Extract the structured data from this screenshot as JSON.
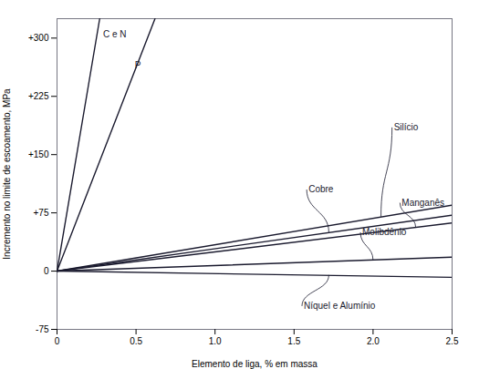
{
  "chart_data": {
    "type": "line",
    "xlabel": "Elemento de liga, % em massa",
    "ylabel": "Incremento no limite de escoamento, MPa",
    "color": "#1a1a2e",
    "xlim": [
      0,
      2.5
    ],
    "ylim": [
      -75,
      325
    ],
    "xticks": [
      0,
      0.5,
      {
        "value": 1.0,
        "label": "1.0"
      },
      1.5,
      {
        "value": 2.0,
        "label": "2.0"
      },
      2.5
    ],
    "yticks": [
      -75,
      0,
      {
        "value": 75,
        "label": "+75"
      },
      {
        "value": 150,
        "label": "+150"
      },
      {
        "value": 225,
        "label": "+225"
      },
      {
        "value": 300,
        "label": "+300"
      }
    ],
    "series": [
      {
        "name": "C e N",
        "x": [
          0,
          0.27
        ],
        "values": [
          0,
          325
        ]
      },
      {
        "name": "P",
        "x": [
          0,
          0.62
        ],
        "values": [
          0,
          325
        ]
      },
      {
        "name": "Silício",
        "x": [
          0,
          2.5
        ],
        "values": [
          0,
          85
        ]
      },
      {
        "name": "Cobre",
        "x": [
          0,
          2.5
        ],
        "values": [
          0,
          72
        ]
      },
      {
        "name": "Manganês",
        "x": [
          0,
          2.5
        ],
        "values": [
          0,
          62
        ]
      },
      {
        "name": "Molibdênio",
        "x": [
          0,
          2.5
        ],
        "values": [
          0,
          18
        ]
      },
      {
        "name": "Níquel e Alumínio",
        "x": [
          0,
          2.5
        ],
        "values": [
          0,
          -8
        ]
      }
    ],
    "annotations": [
      {
        "text": "C e N",
        "x": 0.28,
        "y": 305
      },
      {
        "text": "P",
        "x": 0.48,
        "y": 265
      },
      {
        "text": "Silício",
        "x": 2.12,
        "y": 185,
        "arrow_to": [
          2.05,
          70
        ]
      },
      {
        "text": "Cobre",
        "x": 1.58,
        "y": 105,
        "arrow_to": [
          1.72,
          50
        ]
      },
      {
        "text": "Manganês",
        "x": 2.17,
        "y": 88,
        "arrow_to": [
          2.27,
          56
        ]
      },
      {
        "text": "Molibdênio",
        "x": 1.92,
        "y": 50,
        "arrow_to": [
          2.0,
          14
        ]
      },
      {
        "text": "Níquel e Alumínio",
        "x": 1.55,
        "y": -45,
        "arrow_to": [
          1.72,
          -5
        ]
      }
    ]
  }
}
